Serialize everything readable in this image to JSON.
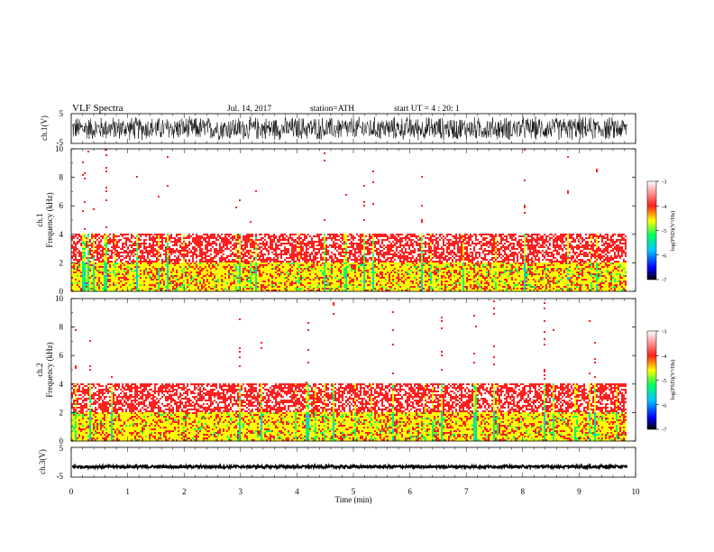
{
  "header": {
    "title": "VLF  Spectra",
    "date": "Jul.  14,  2017",
    "station": "station=ATH",
    "start_ut": "start  UT  =    4  : 20: 1"
  },
  "chart_data": [
    {
      "type": "line",
      "panel": "ch1-waveform",
      "ylabel": "ch.1(V)",
      "ylim": [
        -5,
        5
      ],
      "y_ticks": [
        "5",
        "-5"
      ],
      "amplitude_range_v": [
        -4.3,
        4.3
      ],
      "x_range_min": [
        0,
        9.85
      ]
    },
    {
      "type": "heatmap",
      "panel": "ch1-spectrogram",
      "ylabel_line1": "ch.1",
      "ylabel_line2": "Frequency  (kHz)",
      "ylim": [
        0,
        10
      ],
      "y_ticks": [
        "0",
        "2",
        "4",
        "6",
        "8",
        "10"
      ],
      "x_range_min": [
        0,
        9.85
      ],
      "colorbar": {
        "label": "log(PSD)(V²/Hz)",
        "range": [
          -7,
          -3
        ],
        "ticks": [
          "-3",
          "-4",
          "-5",
          "-6",
          "-7"
        ],
        "colors": [
          "#000000",
          "#0000ff",
          "#00c8ff",
          "#00ff60",
          "#ffff00",
          "#ff2020",
          "#ffffff"
        ]
      },
      "bands_khz": [
        {
          "from": 0,
          "to": 2,
          "level": -4.8
        },
        {
          "from": 2,
          "to": 4,
          "level": -4.1
        },
        {
          "from": 4,
          "to": 10,
          "level": -3.4
        }
      ]
    },
    {
      "type": "heatmap",
      "panel": "ch2-spectrogram",
      "ylabel_line1": "ch.2",
      "ylabel_line2": "Frequency  (kHz)",
      "ylim": [
        0,
        10
      ],
      "y_ticks": [
        "0",
        "2",
        "4",
        "6",
        "8",
        "10"
      ],
      "x_range_min": [
        0,
        9.85
      ],
      "colorbar": {
        "label": "log(PSD)(V²/Hz)",
        "range": [
          -7,
          -3
        ],
        "ticks": [
          "-3",
          "-4",
          "-5",
          "-6",
          "-7"
        ],
        "colors": [
          "#000000",
          "#0000ff",
          "#00c8ff",
          "#00ff60",
          "#ffff00",
          "#ff2020",
          "#ffffff"
        ]
      },
      "bands_khz": [
        {
          "from": 0,
          "to": 2,
          "level": -4.8
        },
        {
          "from": 2,
          "to": 4,
          "level": -4.1
        },
        {
          "from": 4,
          "to": 10,
          "level": -3.4
        }
      ]
    },
    {
      "type": "line",
      "panel": "ch3-waveform",
      "ylabel": "ch.3(V)",
      "ylim": [
        -5,
        5
      ],
      "y_ticks": [
        "5",
        "-5"
      ],
      "baseline_v": -1.5,
      "x_range_min": [
        0,
        9.85
      ],
      "xlabel": "Time  (min)",
      "x_ticks": [
        "0",
        "1",
        "2",
        "3",
        "4",
        "5",
        "6",
        "7",
        "8",
        "9",
        "10"
      ],
      "xlim": [
        0,
        10
      ]
    }
  ]
}
